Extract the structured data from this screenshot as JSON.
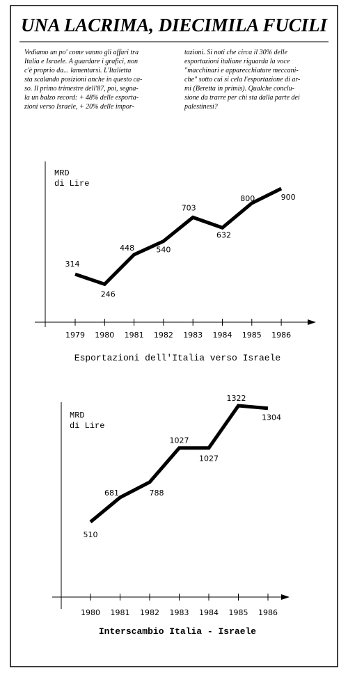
{
  "header": {
    "title": "UNA LACRIMA, DIECIMILA FUCILI"
  },
  "article": {
    "columns": [
      {
        "lines": [
          "Vediamo un po' come vanno gli affari tra",
          "Italia e Israele. A guardare i grafici, non",
          "c'è proprio da... lamentarsi. L'Italietta",
          "sta scalando posizioni anche in questo ca-",
          "so. Il primo trimestre dell'87, poi, segna-",
          "la un balzo record: + 48% delle esporta-",
          "zioni verso Israele, + 20% delle impor-"
        ]
      },
      {
        "lines": [
          "tazioni. Si noti che circa il 30% delle",
          "esportazioni italiane riguarda la voce",
          "\"macchinari e apparecchiature meccani-",
          "che\" sotto cui si cela l'esportazione di ar-",
          "mi (Beretta in primis). Qualche conclu-",
          "sione da trarre per chi sta dalla parte dei",
          "palestinesi?"
        ]
      }
    ]
  },
  "chart_data": [
    {
      "type": "line",
      "title": "Esportazioni dell'Italia verso Israele",
      "y_label": [
        "MRD",
        "di Lire"
      ],
      "categories": [
        "1979",
        "1980",
        "1981",
        "1982",
        "1983",
        "1984",
        "1985",
        "1986"
      ],
      "values": [
        314,
        246,
        448,
        540,
        703,
        632,
        800,
        900
      ],
      "color": "#000000",
      "ylim": [
        0,
        1100
      ]
    },
    {
      "type": "line",
      "title": "Interscambio Italia - Israele",
      "y_label": [
        "MRD",
        "di Lire"
      ],
      "categories": [
        "1980",
        "1981",
        "1982",
        "1983",
        "1984",
        "1985",
        "1986"
      ],
      "values": [
        510,
        681,
        788,
        1027,
        1027,
        1322,
        1304
      ],
      "color": "#000000",
      "ylim": [
        0,
        1400
      ]
    }
  ]
}
